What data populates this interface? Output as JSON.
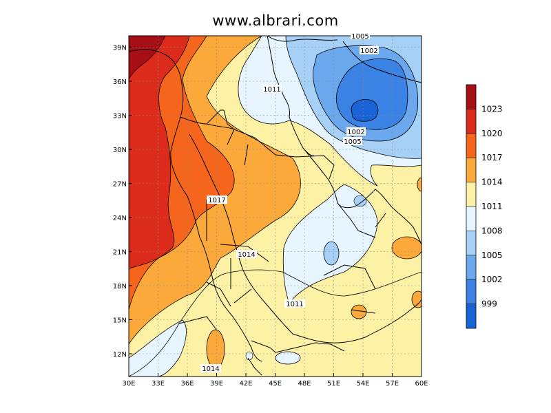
{
  "title": "www.albrari.com",
  "map": {
    "lon_range": [
      30,
      60
    ],
    "lat_range": [
      10,
      40
    ],
    "lon_ticks": [
      "30E",
      "33E",
      "36E",
      "39E",
      "42E",
      "45E",
      "48E",
      "51E",
      "54E",
      "57E",
      "60E"
    ],
    "lat_ticks": [
      "39N",
      "36N",
      "33N",
      "30N",
      "27N",
      "24N",
      "21N",
      "18N",
      "15N",
      "12N"
    ],
    "contour_labels": [
      "1005",
      "1002",
      "1011",
      "1002",
      "1005",
      "1017",
      "1014",
      "1011",
      "1014"
    ]
  },
  "colorbar": {
    "labels": [
      "1023",
      "1020",
      "1017",
      "1014",
      "1011",
      "1008",
      "1005",
      "1002",
      "999"
    ],
    "colors": [
      "#a50f15",
      "#dc2a1b",
      "#f5651c",
      "#fba93a",
      "#fdf1a6",
      "#e6f5ff",
      "#a6d0f5",
      "#6ba8ee",
      "#3a82e4",
      "#1863d6"
    ]
  }
}
